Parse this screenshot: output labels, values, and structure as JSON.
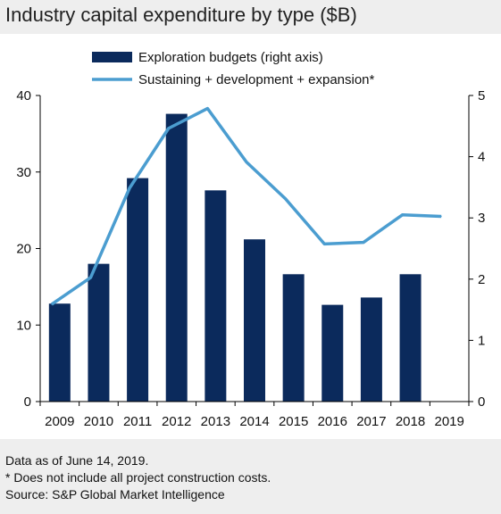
{
  "title": "Industry capital expenditure by type ($B)",
  "footer": {
    "line1": "Data as of June 14, 2019.",
    "line2": "* Does not include all project construction costs.",
    "line3": "Source: S&P Global Market Intelligence"
  },
  "colors": {
    "bar": "#0b2a5c",
    "line": "#4b9dd0",
    "axis": "#000000"
  },
  "chart_data": {
    "type": "bar",
    "categories": [
      "2009",
      "2010",
      "2011",
      "2012",
      "2013",
      "2014",
      "2015",
      "2016",
      "2017",
      "2018",
      "2019"
    ],
    "series": [
      {
        "name": "Exploration budgets (right axis)",
        "type": "bar",
        "axis": "right",
        "values": [
          1.6,
          2.25,
          3.65,
          4.7,
          3.45,
          2.65,
          2.08,
          1.58,
          1.7,
          2.08,
          null
        ]
      },
      {
        "name": "Sustaining + development + expansion*",
        "type": "line",
        "axis": "left",
        "values": [
          12.7,
          16.2,
          27.9,
          35.7,
          38.3,
          31.3,
          26.5,
          20.6,
          20.8,
          24.4,
          24.2
        ]
      }
    ],
    "ylim_left": [
      0,
      40
    ],
    "yticks_left": [
      0,
      10,
      20,
      30,
      40
    ],
    "ylim_right": [
      0,
      5
    ],
    "yticks_right": [
      0,
      1,
      2,
      3,
      4,
      5
    ],
    "legend": "top",
    "grid": false
  }
}
